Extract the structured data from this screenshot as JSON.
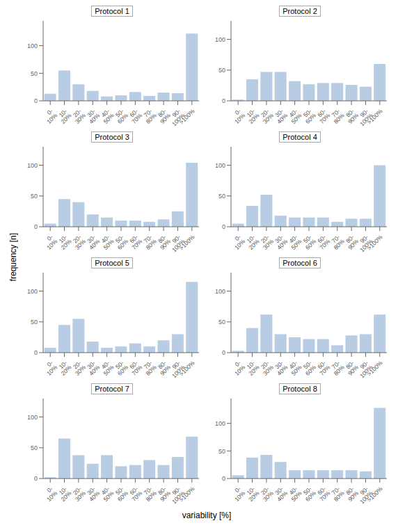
{
  "chart_data": [
    {
      "type": "bar",
      "title": "Protocol 1",
      "categories": [
        "0-\n10%",
        "10-\n20%",
        "20-\n30%",
        "30-\n40%",
        "40-\n50%",
        "50-\n60%",
        "60-\n70%",
        "70-\n80%",
        "80-\n90%",
        "90-\n100%",
        ">100%"
      ],
      "values": [
        13,
        55,
        30,
        18,
        8,
        10,
        16,
        9,
        15,
        14,
        122
      ],
      "color": "#b8cce4",
      "ylim": [
        0,
        145
      ],
      "yticks": [
        0,
        50,
        100
      ],
      "grid": false
    },
    {
      "type": "bar",
      "title": "Protocol 2",
      "categories": [
        "0-\n10%",
        "10-\n20%",
        "20-\n30%",
        "30-\n40%",
        "40-\n50%",
        "50-\n60%",
        "60-\n70%",
        "70-\n80%",
        "80-\n90%",
        "90-\n100%",
        ">100%"
      ],
      "values": [
        2,
        35,
        47,
        47,
        32,
        27,
        29,
        29,
        26,
        23,
        60
      ],
      "color": "#b8cce4",
      "ylim": [
        0,
        130
      ],
      "yticks": [
        0,
        50,
        100
      ],
      "grid": false
    },
    {
      "type": "bar",
      "title": "Protocol 3",
      "categories": [
        "0-\n10%",
        "10-\n20%",
        "20-\n30%",
        "30-\n40%",
        "40-\n50%",
        "50-\n60%",
        "60-\n70%",
        "70-\n80%",
        "80-\n90%",
        "90-\n100%",
        ">100%"
      ],
      "values": [
        5,
        45,
        40,
        20,
        15,
        10,
        10,
        8,
        12,
        25,
        104
      ],
      "color": "#b8cce4",
      "ylim": [
        0,
        130
      ],
      "yticks": [
        0,
        50,
        100
      ],
      "grid": false
    },
    {
      "type": "bar",
      "title": "Protocol 4",
      "categories": [
        "0-\n10%",
        "10-\n20%",
        "20-\n30%",
        "30-\n40%",
        "40-\n50%",
        "50-\n60%",
        "60-\n70%",
        "70-\n80%",
        "80-\n90%",
        "90-\n100%",
        ">100%"
      ],
      "values": [
        5,
        34,
        52,
        18,
        15,
        15,
        15,
        8,
        13,
        13,
        100
      ],
      "color": "#b8cce4",
      "ylim": [
        0,
        130
      ],
      "yticks": [
        0,
        50,
        100
      ],
      "grid": false
    },
    {
      "type": "bar",
      "title": "Protocol 5",
      "categories": [
        "0-\n10%",
        "10-\n20%",
        "20-\n30%",
        "30-\n40%",
        "40-\n50%",
        "50-\n60%",
        "60-\n70%",
        "70-\n80%",
        "80-\n90%",
        "90-\n100%",
        ">100%"
      ],
      "values": [
        8,
        45,
        55,
        18,
        8,
        10,
        15,
        10,
        20,
        30,
        115
      ],
      "color": "#b8cce4",
      "ylim": [
        0,
        130
      ],
      "yticks": [
        0,
        50,
        100
      ],
      "grid": false
    },
    {
      "type": "bar",
      "title": "Protocol 6",
      "categories": [
        "0-\n10%",
        "10-\n20%",
        "20-\n30%",
        "30-\n40%",
        "40-\n50%",
        "50-\n60%",
        "60-\n70%",
        "70-\n80%",
        "80-\n90%",
        "90-\n100%",
        ">100%"
      ],
      "values": [
        3,
        40,
        62,
        30,
        25,
        22,
        22,
        12,
        28,
        30,
        62
      ],
      "color": "#b8cce4",
      "ylim": [
        0,
        130
      ],
      "yticks": [
        0,
        50,
        100
      ],
      "grid": false
    },
    {
      "type": "bar",
      "title": "Protocol 7",
      "categories": [
        "0-\n10%",
        "10-\n20%",
        "20-\n30%",
        "30-\n40%",
        "40-\n50%",
        "50-\n60%",
        "60-\n70%",
        "70-\n80%",
        "80-\n90%",
        "90-\n100%",
        ">100%"
      ],
      "values": [
        2,
        65,
        38,
        24,
        38,
        20,
        22,
        30,
        22,
        35,
        68
      ],
      "color": "#b8cce4",
      "ylim": [
        0,
        130
      ],
      "yticks": [
        0,
        50,
        100
      ],
      "grid": false
    },
    {
      "type": "bar",
      "title": "Protocol 8",
      "categories": [
        "0-\n10%",
        "10-\n20%",
        "20-\n30%",
        "30-\n40%",
        "40-\n50%",
        "50-\n60%",
        "60-\n70%",
        "70-\n80%",
        "80-\n90%",
        "90-\n100%",
        ">100%"
      ],
      "values": [
        6,
        38,
        43,
        30,
        15,
        15,
        15,
        15,
        15,
        13,
        128
      ],
      "color": "#b8cce4",
      "ylim": [
        0,
        145
      ],
      "yticks": [
        0,
        50,
        100
      ],
      "grid": false
    }
  ],
  "xlabel": "variability [%]",
  "ylabel": "frequency [n]"
}
